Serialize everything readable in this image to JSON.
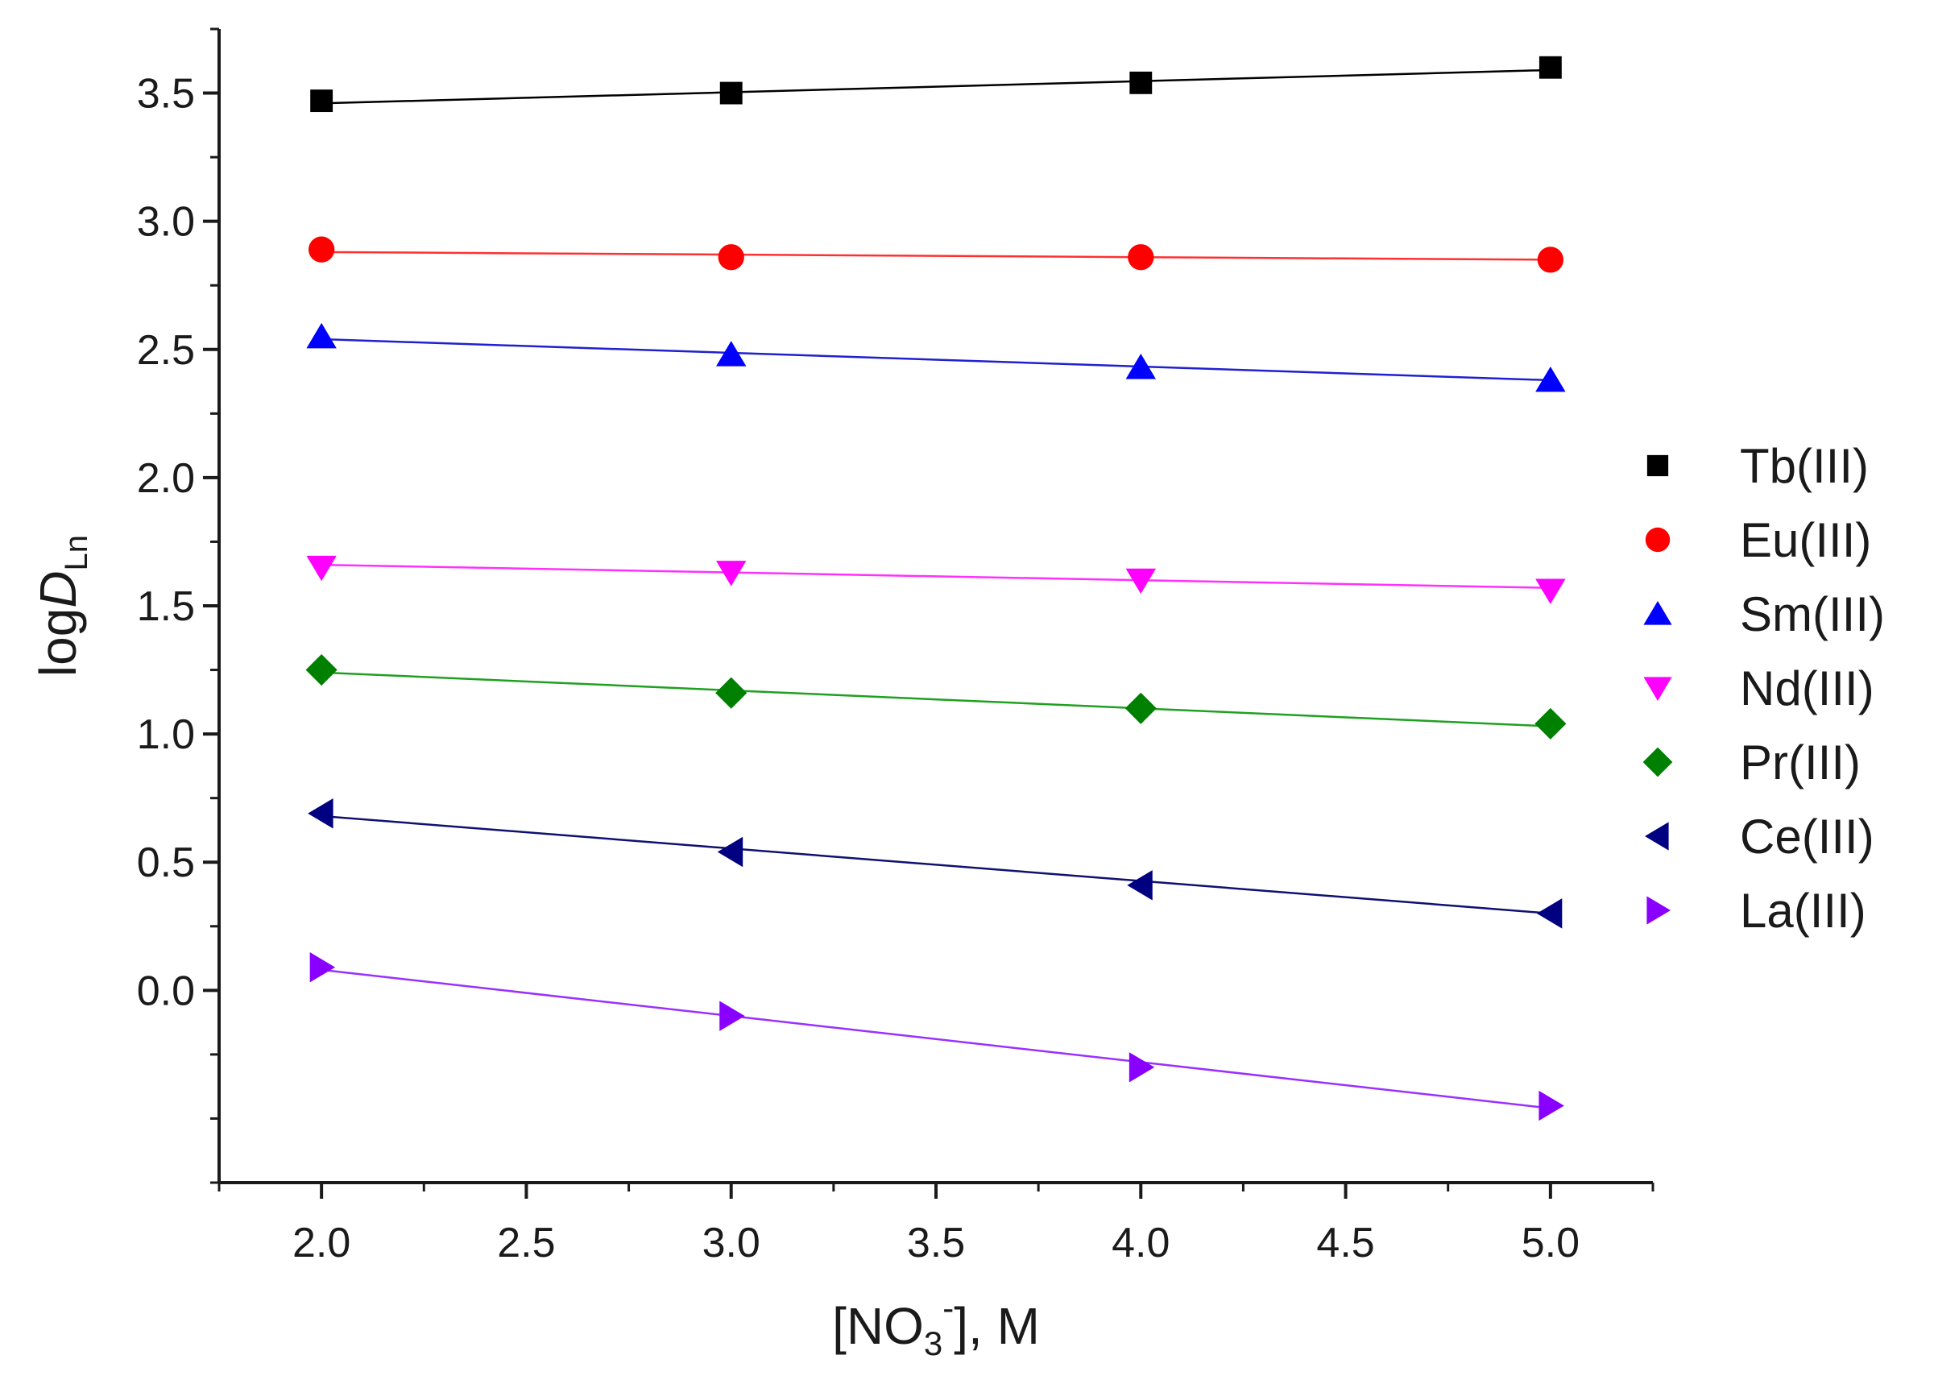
{
  "chart_data": {
    "type": "scatter",
    "title": "",
    "xlabel": {
      "main": "[NO",
      "sub": "3",
      "sup": "-",
      "tail": "], M"
    },
    "ylabel": {
      "main": "log",
      "italic": "D",
      "sub": "Ln"
    },
    "xlim": [
      1.75,
      5.25
    ],
    "ylim": [
      -0.75,
      3.75
    ],
    "xticks": [
      2.0,
      2.5,
      3.0,
      3.5,
      4.0,
      4.5,
      5.0
    ],
    "xtick_labels": [
      "2.0",
      "2.5",
      "3.0",
      "3.5",
      "4.0",
      "4.5",
      "5.0"
    ],
    "yticks": [
      0.0,
      0.5,
      1.0,
      1.5,
      2.0,
      2.5,
      3.0,
      3.5
    ],
    "ytick_labels": [
      "0.0",
      "0.5",
      "1.0",
      "1.5",
      "2.0",
      "2.5",
      "3.0",
      "3.5"
    ],
    "legend_position": "right",
    "series": [
      {
        "name": "Tb(III)",
        "marker": "square",
        "color": "#000000",
        "line_color": "#000000",
        "x": [
          2,
          3,
          4,
          5
        ],
        "y": [
          3.47,
          3.5,
          3.54,
          3.6
        ],
        "fit": [
          3.46,
          3.59
        ]
      },
      {
        "name": "Eu(III)",
        "marker": "circle",
        "color": "#ff0000",
        "line_color": "#ff3030",
        "x": [
          2,
          3,
          4,
          5
        ],
        "y": [
          2.89,
          2.86,
          2.86,
          2.85
        ],
        "fit": [
          2.88,
          2.85
        ]
      },
      {
        "name": "Sm(III)",
        "marker": "triangle-up",
        "color": "#0000ff",
        "line_color": "#2020d0",
        "x": [
          2,
          3,
          4,
          5
        ],
        "y": [
          2.55,
          2.48,
          2.43,
          2.38
        ],
        "fit": [
          2.54,
          2.38
        ]
      },
      {
        "name": "Nd(III)",
        "marker": "triangle-down",
        "color": "#ff00ff",
        "line_color": "#ff30ff",
        "x": [
          2,
          3,
          4,
          5
        ],
        "y": [
          1.65,
          1.63,
          1.6,
          1.56
        ],
        "fit": [
          1.66,
          1.57
        ]
      },
      {
        "name": "Pr(III)",
        "marker": "diamond",
        "color": "#008000",
        "line_color": "#20a020",
        "x": [
          2,
          3,
          4,
          5
        ],
        "y": [
          1.25,
          1.16,
          1.1,
          1.04
        ],
        "fit": [
          1.24,
          1.03
        ]
      },
      {
        "name": "Ce(III)",
        "marker": "triangle-left",
        "color": "#000080",
        "line_color": "#101070",
        "x": [
          2,
          3,
          4,
          5
        ],
        "y": [
          0.69,
          0.54,
          0.41,
          0.3
        ],
        "fit": [
          0.68,
          0.3
        ]
      },
      {
        "name": "La(III)",
        "marker": "triangle-right",
        "color": "#8a00ff",
        "line_color": "#9a30ff",
        "x": [
          2,
          3,
          4,
          5
        ],
        "y": [
          0.09,
          -0.1,
          -0.3,
          -0.45
        ],
        "fit": [
          0.08,
          -0.46
        ]
      }
    ]
  }
}
